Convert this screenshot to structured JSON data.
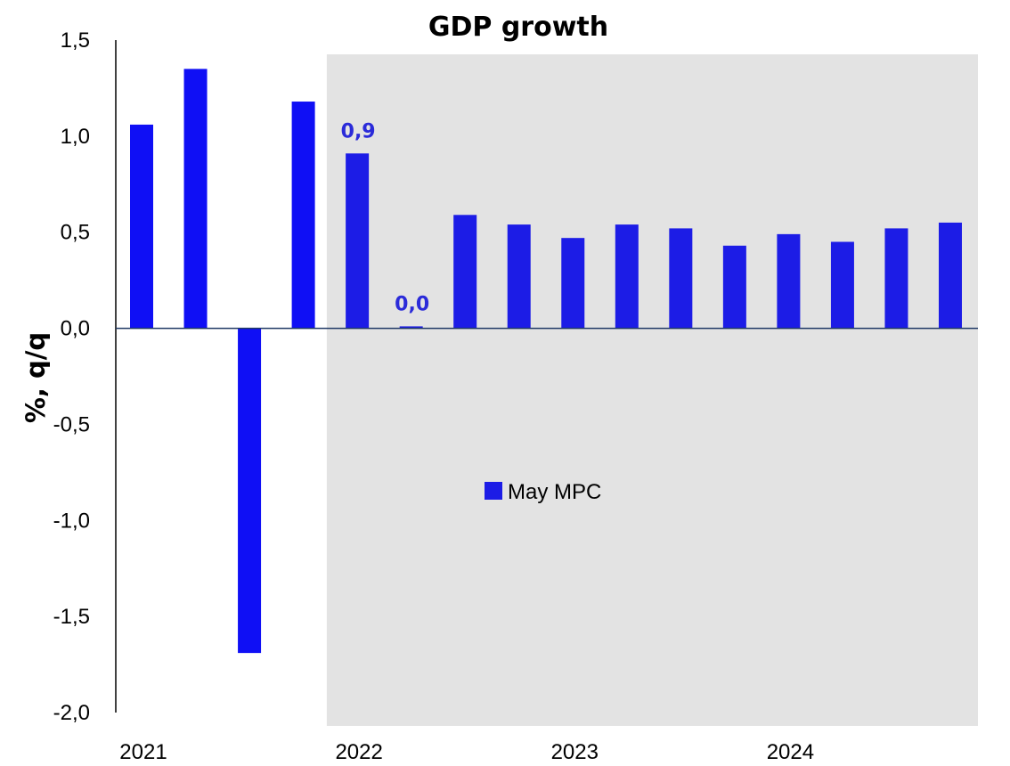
{
  "chart_data": {
    "type": "bar",
    "title": "GDP growth",
    "xlabel": "",
    "ylabel": "%, q/q",
    "ylim": [
      -2.0,
      1.5
    ],
    "y_ticks": [
      "1,5",
      "1,0",
      "0,5",
      "0,0",
      "-0,5",
      "-1,0",
      "-1,5",
      "-2,0"
    ],
    "y_tick_values": [
      1.5,
      1.0,
      0.5,
      0.0,
      -0.5,
      -1.0,
      -1.5,
      -2.0
    ],
    "x_tick_labels": [
      "2021",
      "2022",
      "2023",
      "2024"
    ],
    "categories": [
      "2021Q1",
      "2021Q2",
      "2021Q3",
      "2021Q4",
      "2022Q1",
      "2022Q2",
      "2022Q3",
      "2022Q4",
      "2023Q1",
      "2023Q2",
      "2023Q3",
      "2023Q4",
      "2024Q1",
      "2024Q2",
      "2024Q3",
      "2024Q4"
    ],
    "series": [
      {
        "name": "May MPC",
        "values": [
          1.06,
          1.35,
          -1.69,
          1.18,
          0.91,
          0.01,
          0.59,
          0.54,
          0.47,
          0.54,
          0.52,
          0.43,
          0.49,
          0.45,
          0.52,
          0.55
        ]
      }
    ],
    "data_labels": [
      {
        "category": "2022Q1",
        "text": "0,9"
      },
      {
        "category": "2022Q2",
        "text": "0,0"
      }
    ],
    "forecast_shading_from": "2022Q1",
    "legend_position": "center",
    "grid": false,
    "colors": {
      "actual_bar": "#0f0ff5",
      "forecast_bar": "#1c1ce6",
      "forecast_background": "#e3e3e3",
      "data_label": "#2b2bd9",
      "axis_line": "#000000",
      "zero_line": "#1f3864"
    }
  }
}
